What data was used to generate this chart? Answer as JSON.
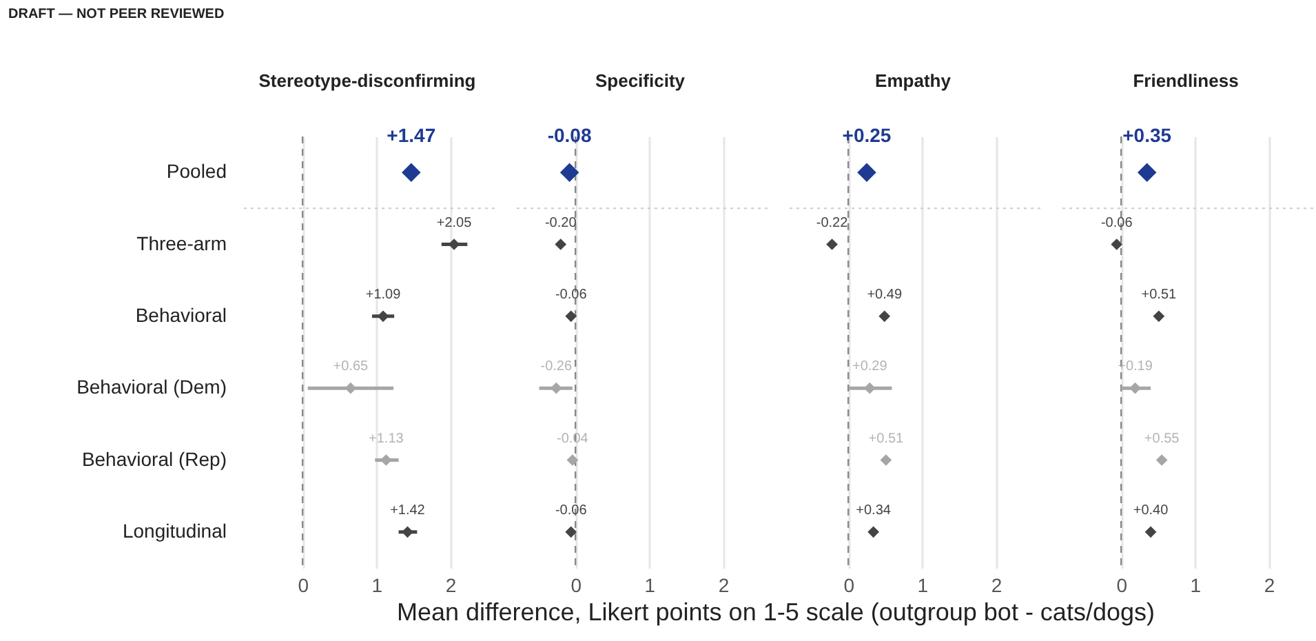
{
  "chart_data": [
    {
      "type": "scatter",
      "title": "Stereotype-disconfirming",
      "xlabel": "Mean difference, Likert points on 1-5 scale (outgroup bot - cats/dogs)",
      "annotations": [
        "DRAFT — NOT PEER REVIEWED"
      ],
      "categories": [
        "Pooled",
        "Three-arm",
        "Behavioral",
        "Behavioral (Dem)",
        "Behavioral (Rep)",
        "Longitudinal"
      ],
      "xlim": [
        -0.85,
        2.6
      ],
      "xticks": [
        0,
        1,
        2
      ],
      "grid": "x",
      "marker": "diamond",
      "orientation": "horizontal",
      "series": [
        {
          "color": "#1f3a93",
          "values": [
            1.47,
            null,
            null,
            null,
            null,
            null
          ],
          "value_labels": [
            "+1.47",
            null,
            null,
            null,
            null,
            null
          ]
        },
        {
          "color": "#444444",
          "values": [
            null,
            2.05,
            1.09,
            null,
            null,
            1.42
          ],
          "errors": [
            null,
            [
              1.88,
              2.23
            ],
            [
              0.94,
              1.24
            ],
            null,
            null,
            [
              1.3,
              1.55
            ]
          ],
          "value_labels": [
            null,
            "+2.05",
            "+1.09",
            null,
            null,
            "+1.42"
          ]
        },
        {
          "color": "#a6a6a6",
          "values": [
            null,
            null,
            null,
            0.65,
            1.13,
            null
          ],
          "errors": [
            null,
            null,
            null,
            [
              0.07,
              1.23
            ],
            [
              0.98,
              1.3
            ],
            null
          ],
          "value_labels": [
            null,
            null,
            null,
            "+0.65",
            "+1.13",
            null
          ]
        }
      ],
      "ref_lines": [
        {
          "axis": "x",
          "value": 0,
          "color": "#888888",
          "line_style": "dashed"
        },
        {
          "axis": "y",
          "value": "Pooled",
          "color": "#cccccc",
          "line_style": "dotted"
        }
      ]
    },
    {
      "type": "scatter",
      "title": "Specificity",
      "categories": [
        "Pooled",
        "Three-arm",
        "Behavioral",
        "Behavioral (Dem)",
        "Behavioral (Rep)",
        "Longitudinal"
      ],
      "xlim": [
        -0.85,
        2.6
      ],
      "xticks": [
        0,
        1,
        2
      ],
      "grid": "x",
      "marker": "diamond",
      "orientation": "horizontal",
      "tick_labels": "x",
      "series": [
        {
          "color": "#1f3a93",
          "values": [
            -0.08,
            null,
            null,
            null,
            null,
            null
          ],
          "value_labels": [
            "-0.08",
            null,
            null,
            null,
            null,
            null
          ]
        },
        {
          "color": "#444444",
          "values": [
            null,
            -0.2,
            -0.06,
            null,
            null,
            -0.06
          ],
          "value_labels": [
            null,
            "-0.20",
            "-0.06",
            null,
            null,
            "-0.06"
          ]
        },
        {
          "color": "#a6a6a6",
          "values": [
            null,
            null,
            null,
            -0.26,
            -0.04,
            null
          ],
          "errors": [
            null,
            null,
            null,
            [
              -0.49,
              -0.04
            ],
            null,
            null
          ],
          "value_labels": [
            null,
            null,
            null,
            "-0.26",
            "-0.04",
            null
          ]
        }
      ],
      "ref_lines": [
        {
          "axis": "x",
          "value": 0,
          "color": "#888888",
          "line_style": "dashed"
        },
        {
          "axis": "y",
          "value": "Pooled",
          "color": "#cccccc",
          "line_style": "dotted"
        }
      ]
    },
    {
      "type": "scatter",
      "title": "Empathy",
      "categories": [
        "Pooled",
        "Three-arm",
        "Behavioral",
        "Behavioral (Dem)",
        "Behavioral (Rep)",
        "Longitudinal"
      ],
      "xlim": [
        -0.85,
        2.6
      ],
      "xticks": [
        0,
        1,
        2
      ],
      "grid": "x",
      "marker": "diamond",
      "orientation": "horizontal",
      "tick_labels": "x",
      "series": [
        {
          "color": "#1f3a93",
          "values": [
            0.25,
            null,
            null,
            null,
            null,
            null
          ],
          "value_labels": [
            "+0.25",
            null,
            null,
            null,
            null,
            null
          ]
        },
        {
          "color": "#444444",
          "values": [
            null,
            -0.22,
            0.49,
            null,
            null,
            0.34
          ],
          "value_labels": [
            null,
            "-0.22",
            "+0.49",
            null,
            null,
            "+0.34"
          ]
        },
        {
          "color": "#a6a6a6",
          "values": [
            null,
            null,
            null,
            0.29,
            0.51,
            null
          ],
          "errors": [
            null,
            null,
            null,
            [
              0.01,
              0.59
            ],
            null,
            null
          ],
          "value_labels": [
            null,
            null,
            null,
            "+0.29",
            "+0.51",
            null
          ]
        }
      ],
      "ref_lines": [
        {
          "axis": "x",
          "value": 0,
          "color": "#888888",
          "line_style": "dashed"
        },
        {
          "axis": "y",
          "value": "Pooled",
          "color": "#cccccc",
          "line_style": "dotted"
        }
      ]
    },
    {
      "type": "scatter",
      "title": "Friendliness",
      "categories": [
        "Pooled",
        "Three-arm",
        "Behavioral",
        "Behavioral (Dem)",
        "Behavioral (Rep)",
        "Longitudinal"
      ],
      "xlim": [
        -0.85,
        2.6
      ],
      "xticks": [
        0,
        1,
        2
      ],
      "grid": "x",
      "marker": "diamond",
      "orientation": "horizontal",
      "tick_labels": "x",
      "series": [
        {
          "color": "#1f3a93",
          "values": [
            0.35,
            null,
            null,
            null,
            null,
            null
          ],
          "value_labels": [
            "+0.35",
            null,
            null,
            null,
            null,
            null
          ]
        },
        {
          "color": "#444444",
          "values": [
            null,
            -0.06,
            0.51,
            null,
            null,
            0.4
          ],
          "value_labels": [
            null,
            "-0.06",
            "+0.51",
            null,
            null,
            "+0.40"
          ]
        },
        {
          "color": "#a6a6a6",
          "values": [
            null,
            null,
            null,
            0.19,
            0.55,
            null
          ],
          "errors": [
            null,
            null,
            null,
            [
              0.0,
              0.4
            ],
            null,
            null
          ],
          "value_labels": [
            null,
            null,
            null,
            "+0.19",
            "+0.55",
            null
          ]
        }
      ],
      "ref_lines": [
        {
          "axis": "x",
          "value": 0,
          "color": "#888888",
          "line_style": "dashed"
        },
        {
          "axis": "y",
          "value": "Pooled",
          "color": "#cccccc",
          "line_style": "dotted"
        }
      ]
    }
  ]
}
